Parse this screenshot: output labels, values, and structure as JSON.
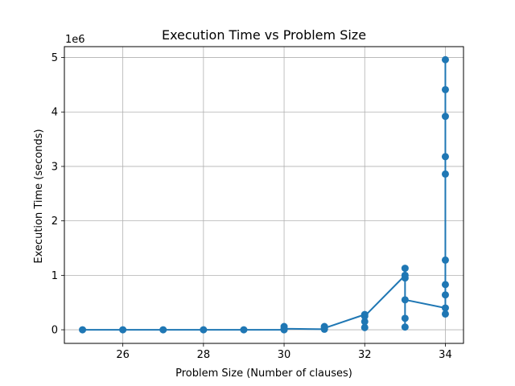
{
  "chart_data": {
    "type": "line",
    "title": "Execution Time vs Problem Size",
    "xlabel": "Problem Size (Number of clauses)",
    "ylabel": "Execution Time (seconds)",
    "y_offset_text": "1e6",
    "xlim": [
      24.55,
      34.45
    ],
    "ylim": [
      -0.25,
      5.2
    ],
    "y_scale_factor": 1000000,
    "xticks": [
      26,
      28,
      30,
      32,
      34
    ],
    "yticks": [
      0,
      1,
      2,
      3,
      4,
      5
    ],
    "xtick_labels": [
      "26",
      "28",
      "30",
      "32",
      "34"
    ],
    "ytick_labels": [
      "0",
      "1",
      "2",
      "3",
      "4",
      "5"
    ],
    "grid": true,
    "legend": "none",
    "series": [
      {
        "color": "#1f77b4",
        "points": [
          {
            "x": 25,
            "y": 0
          },
          {
            "x": 26,
            "y": 0
          },
          {
            "x": 27,
            "y": 0
          },
          {
            "x": 28,
            "y": 0
          },
          {
            "x": 29,
            "y": 0
          },
          {
            "x": 30,
            "y": 0
          },
          {
            "x": 30,
            "y": 0.06
          },
          {
            "x": 30,
            "y": 0.02
          },
          {
            "x": 31,
            "y": 0.01
          },
          {
            "x": 31,
            "y": 0.06
          },
          {
            "x": 31,
            "y": 0.03
          },
          {
            "x": 32,
            "y": 0.28
          },
          {
            "x": 32,
            "y": 0.04
          },
          {
            "x": 32,
            "y": 0.15
          },
          {
            "x": 32,
            "y": 0.25
          },
          {
            "x": 33,
            "y": 1.0
          },
          {
            "x": 33,
            "y": 1.13
          },
          {
            "x": 33,
            "y": 0.05
          },
          {
            "x": 33,
            "y": 0.21
          },
          {
            "x": 33,
            "y": 0.95
          },
          {
            "x": 33,
            "y": 0.55
          },
          {
            "x": 34,
            "y": 0.4
          },
          {
            "x": 34,
            "y": 0.29
          },
          {
            "x": 34,
            "y": 0.83
          },
          {
            "x": 34,
            "y": 0.64
          },
          {
            "x": 34,
            "y": 1.28
          },
          {
            "x": 34,
            "y": 2.86
          },
          {
            "x": 34,
            "y": 3.18
          },
          {
            "x": 34,
            "y": 3.92
          },
          {
            "x": 34,
            "y": 4.41
          },
          {
            "x": 34,
            "y": 4.96
          }
        ]
      }
    ]
  }
}
